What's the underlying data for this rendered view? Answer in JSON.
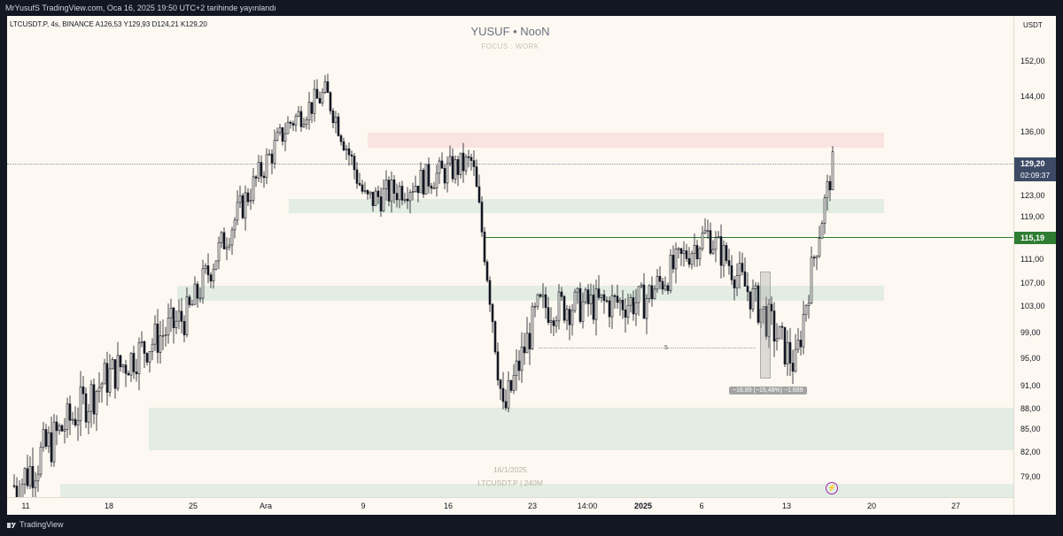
{
  "header": {
    "publisher_line": "MrYusufS TradingView.com, Oca 16, 2025 19:50 UTC+2 tarihinde yayınlandı"
  },
  "legend": {
    "symbol_line": "LTCUSDT.P, 4s, BINANCE  A126,53  Y129,93  D124,21  K129,20"
  },
  "watermark": {
    "title": "YUSUF • NooN",
    "subtitle": "FOCUS : WORK",
    "date": "16/1/2025",
    "symbol_line": "LTCUSDT.P | 240M"
  },
  "price_axis": {
    "currency": "USDT",
    "labels": [
      "152,00",
      "144,00",
      "136,00",
      "123,00",
      "119,00",
      "111,00",
      "107,00",
      "103,00",
      "99,00",
      "95,00",
      "91,00",
      "88,00",
      "85,00",
      "82,00",
      "79,00"
    ],
    "current_price": "129,20",
    "countdown": "02:09:37",
    "level_tag": "115,19"
  },
  "time_axis": {
    "labels": [
      "11",
      "18",
      "25",
      "Ara",
      "9",
      "16",
      "23",
      "14:00",
      "2025",
      "6",
      "13",
      "20",
      "27"
    ]
  },
  "annotations": {
    "measure_label": "−16,89 (−15,48%) −1.689",
    "small_marker": "5",
    "flash_icon": "lightning-icon"
  },
  "footer": {
    "brand": "TradingView"
  },
  "colors": {
    "chart_bg": "#fdf8f1",
    "candle": "#131722",
    "zone_green": "#e3ede3",
    "zone_red": "#fbe3e1",
    "level_line": "#2e7d32",
    "price_tag": "#3d4a66"
  },
  "chart_data": {
    "type": "candlestick",
    "symbol": "LTCUSDT.P",
    "interval": "4s",
    "ohlc_last": {
      "open": 126.53,
      "high": 129.93,
      "low": 124.21,
      "close": 129.2
    },
    "support_resistance_zones": [
      {
        "kind": "resistance",
        "low": 133.5,
        "high": 136.0
      },
      {
        "kind": "support",
        "low": 120.5,
        "high": 122.0
      },
      {
        "kind": "support",
        "low": 104.5,
        "high": 106.0
      },
      {
        "kind": "support",
        "low": 82.5,
        "high": 87.5
      },
      {
        "kind": "support",
        "low": 78.0,
        "high": 79.5
      }
    ],
    "horizontal_level": 115.19,
    "key_path": [
      {
        "x": "11",
        "price": 78
      },
      {
        "x": "18",
        "price": 92
      },
      {
        "x": "25",
        "price": 102
      },
      {
        "x": "Ara",
        "price": 138
      },
      {
        "x": "Ara+4",
        "price": 145
      },
      {
        "x": "9",
        "price": 122
      },
      {
        "x": "16",
        "price": 130
      },
      {
        "x": "18",
        "price": 87
      },
      {
        "x": "23",
        "price": 103
      },
      {
        "x": "2025",
        "price": 104
      },
      {
        "x": "6",
        "price": 116
      },
      {
        "x": "13",
        "price": 94
      },
      {
        "x": "16",
        "price": 129.2
      }
    ],
    "measurement": {
      "change": -16.89,
      "change_pct": -15.48
    }
  }
}
